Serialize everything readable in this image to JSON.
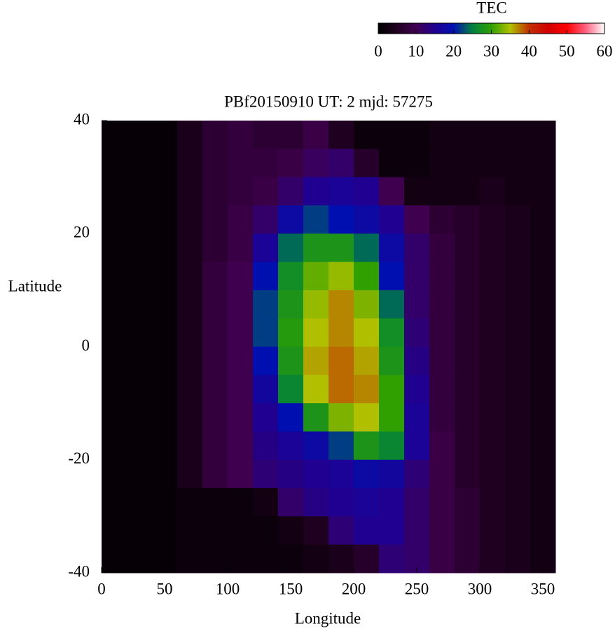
{
  "chart_data": {
    "type": "heatmap",
    "title": "PBf20150910  UT: 2  mjd: 57275",
    "xlabel": "Longitude",
    "ylabel": "Latitude",
    "colorbar_label": "TEC",
    "x": [
      10,
      30,
      50,
      70,
      90,
      110,
      130,
      150,
      170,
      190,
      210,
      230,
      250,
      270,
      290,
      310,
      330,
      350
    ],
    "y": [
      37.5,
      32.5,
      27.5,
      22.5,
      17.5,
      12.5,
      7.5,
      2.5,
      -2.5,
      -7.5,
      -12.5,
      -17.5,
      -22.5,
      -27.5,
      -32.5,
      -37.5
    ],
    "z": [
      [
        1,
        1,
        1,
        4,
        7,
        8,
        7,
        7,
        9,
        5,
        2,
        2,
        2,
        3,
        3,
        3,
        3,
        3
      ],
      [
        1,
        1,
        1,
        4,
        7,
        8,
        8,
        9,
        11,
        12,
        6,
        2,
        2,
        3,
        3,
        3,
        3,
        3
      ],
      [
        1,
        1,
        1,
        4,
        7,
        8,
        9,
        12,
        15,
        16,
        15,
        10,
        3,
        3,
        3,
        4,
        3,
        3
      ],
      [
        1,
        1,
        1,
        4,
        7,
        9,
        12,
        18,
        22,
        20,
        18,
        15,
        10,
        7,
        6,
        5,
        4,
        3
      ],
      [
        1,
        1,
        1,
        4,
        7,
        9,
        16,
        24,
        28,
        28,
        24,
        18,
        12,
        8,
        6,
        5,
        4,
        3
      ],
      [
        1,
        1,
        1,
        4,
        8,
        10,
        20,
        27,
        32,
        34,
        30,
        20,
        12,
        8,
        6,
        5,
        4,
        3
      ],
      [
        1,
        1,
        1,
        4,
        8,
        10,
        22,
        28,
        34,
        37,
        33,
        24,
        12,
        8,
        6,
        5,
        4,
        3
      ],
      [
        1,
        1,
        1,
        4,
        8,
        10,
        22,
        29,
        35,
        37,
        35,
        27,
        13,
        8,
        6,
        5,
        4,
        3
      ],
      [
        1,
        1,
        1,
        4,
        8,
        10,
        20,
        28,
        36,
        38,
        36,
        28,
        14,
        8,
        6,
        5,
        4,
        3
      ],
      [
        1,
        1,
        1,
        4,
        8,
        10,
        17,
        26,
        35,
        38,
        37,
        30,
        15,
        8,
        6,
        5,
        4,
        3
      ],
      [
        1,
        1,
        1,
        4,
        8,
        10,
        15,
        20,
        28,
        33,
        35,
        30,
        16,
        8,
        6,
        5,
        4,
        3
      ],
      [
        1,
        1,
        1,
        4,
        8,
        10,
        14,
        16,
        18,
        22,
        28,
        26,
        16,
        9,
        6,
        5,
        4,
        3
      ],
      [
        1,
        1,
        1,
        4,
        8,
        10,
        13,
        14,
        15,
        16,
        18,
        17,
        13,
        9,
        6,
        5,
        4,
        3
      ],
      [
        1,
        1,
        1,
        2,
        2,
        2,
        3,
        12,
        14,
        15,
        16,
        15,
        12,
        9,
        7,
        5,
        4,
        3
      ],
      [
        1,
        1,
        1,
        2,
        2,
        2,
        2,
        3,
        5,
        13,
        15,
        15,
        12,
        9,
        7,
        5,
        4,
        3
      ],
      [
        1,
        1,
        1,
        2,
        2,
        2,
        2,
        2,
        3,
        4,
        6,
        13,
        12,
        9,
        7,
        5,
        4,
        3
      ]
    ],
    "xlim": [
      0,
      360
    ],
    "xticks": [
      0,
      50,
      100,
      150,
      200,
      250,
      300,
      350
    ],
    "ylim": [
      -40,
      40
    ],
    "yticks": [
      -40,
      -20,
      0,
      20,
      40
    ],
    "zlim": [
      0,
      60
    ],
    "zticks": [
      0,
      10,
      20,
      30,
      40,
      50,
      60
    ],
    "colormap": [
      "#000000",
      "#200020",
      "#400050",
      "#200090",
      "#0010b0",
      "#008040",
      "#30a000",
      "#b0c000",
      "#c03000",
      "#d00000",
      "#ff0000",
      "#ff6080",
      "#ffffff"
    ]
  }
}
